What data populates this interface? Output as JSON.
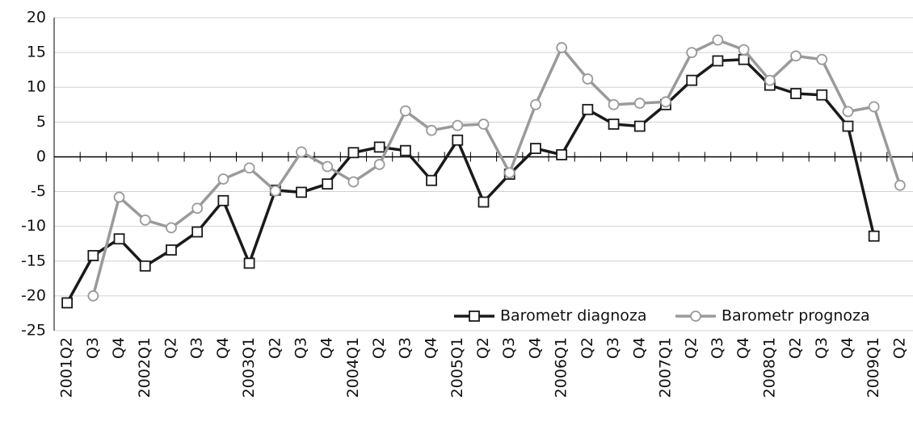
{
  "chart_data": {
    "type": "line",
    "categories": [
      "2001Q2",
      "Q3",
      "Q4",
      "2002Q1",
      "Q2",
      "Q3",
      "Q4",
      "2003Q1",
      "Q2",
      "Q3",
      "Q4",
      "2004Q1",
      "Q2",
      "Q3",
      "Q4",
      "2005Q1",
      "Q2",
      "Q3",
      "Q4",
      "2006Q1",
      "Q2",
      "Q3",
      "Q4",
      "2007Q1",
      "Q2",
      "Q3",
      "Q4",
      "2008Q1",
      "Q2",
      "Q3",
      "Q4",
      "2009Q1",
      "Q2"
    ],
    "series": [
      {
        "name": "Barometr diagnoza",
        "color": "#1a1a1a",
        "marker": "square",
        "values": [
          -21,
          -14.2,
          -11.8,
          -15.7,
          -13.4,
          -10.8,
          -6.3,
          -15.3,
          -4.8,
          -5.1,
          -3.9,
          0.6,
          1.4,
          0.9,
          -3.4,
          2.4,
          -6.5,
          -2.5,
          1.2,
          0.3,
          6.8,
          4.7,
          4.4,
          7.5,
          11,
          13.8,
          14,
          10.3,
          9.1,
          8.9,
          4.4,
          -11.4,
          null
        ]
      },
      {
        "name": "Barometr prognoza",
        "color": "#9a9a9a",
        "marker": "circle",
        "values": [
          null,
          -20,
          -5.8,
          -9.1,
          -10.2,
          -7.4,
          -3.2,
          -1.6,
          -4.9,
          0.7,
          -1.4,
          -3.6,
          -1.1,
          6.6,
          3.8,
          4.5,
          4.7,
          -2.3,
          7.5,
          15.7,
          11.2,
          7.5,
          7.7,
          7.9,
          15,
          16.8,
          15.4,
          11,
          14.5,
          14,
          6.5,
          7.2,
          -4.1
        ]
      }
    ],
    "ylim": [
      -25,
      20
    ],
    "yticks": [
      -25,
      -20,
      -15,
      -10,
      -5,
      0,
      5,
      10,
      15,
      20
    ],
    "grid": true,
    "legend": "bottom-right"
  }
}
